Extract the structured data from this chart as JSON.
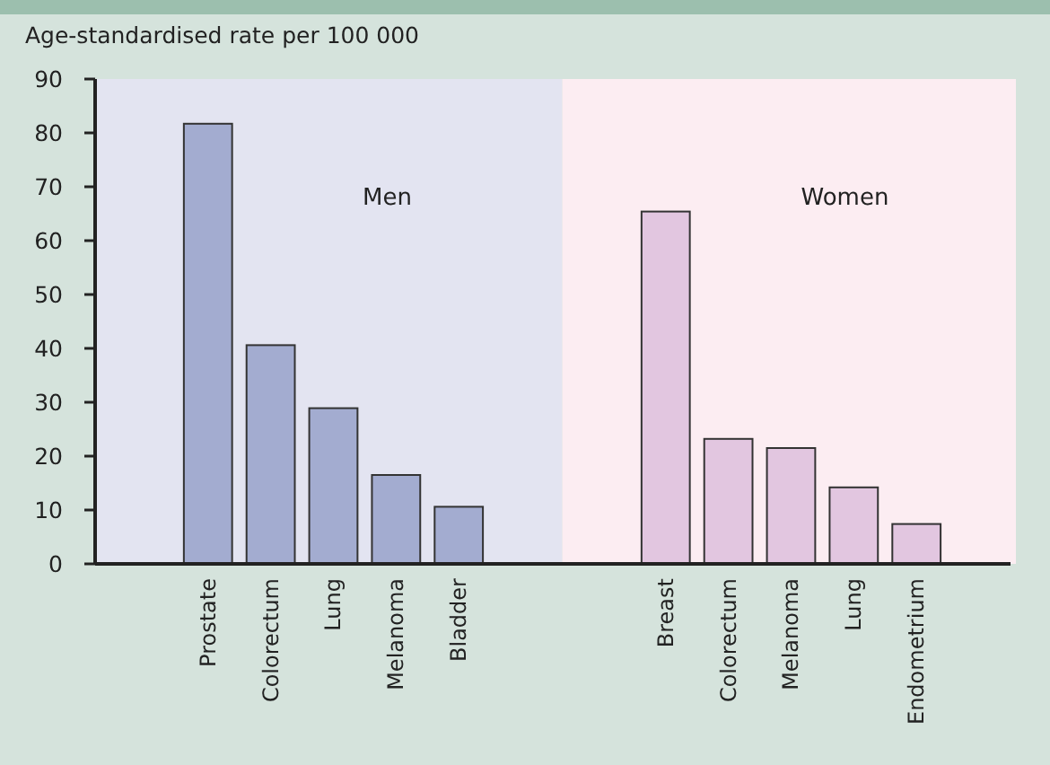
{
  "chart_data": {
    "type": "bar",
    "ylabel": "Age-standardised rate per 100 000",
    "categories": [
      "Prostate",
      "Colorectum",
      "Lung",
      "Melanoma",
      "Bladder",
      "Breast",
      "Colorectum",
      "Melanoma",
      "Lung",
      "Endometrium"
    ],
    "annotations": [
      "Men",
      "Women"
    ],
    "series": [
      {
        "color": "#a3acd0",
        "values": [
          81.7,
          40.6,
          28.9,
          16.5,
          10.6,
          null,
          null,
          null,
          null,
          null
        ]
      },
      {
        "color": "#e2c6e0",
        "values": [
          null,
          null,
          null,
          null,
          null,
          65.4,
          23.2,
          21.5,
          14.2,
          7.4
        ]
      }
    ],
    "ylim": [
      0,
      90
    ],
    "yticks": [
      0,
      10,
      20,
      30,
      40,
      50,
      60,
      70,
      80,
      90
    ],
    "grid": false,
    "legend": false
  }
}
